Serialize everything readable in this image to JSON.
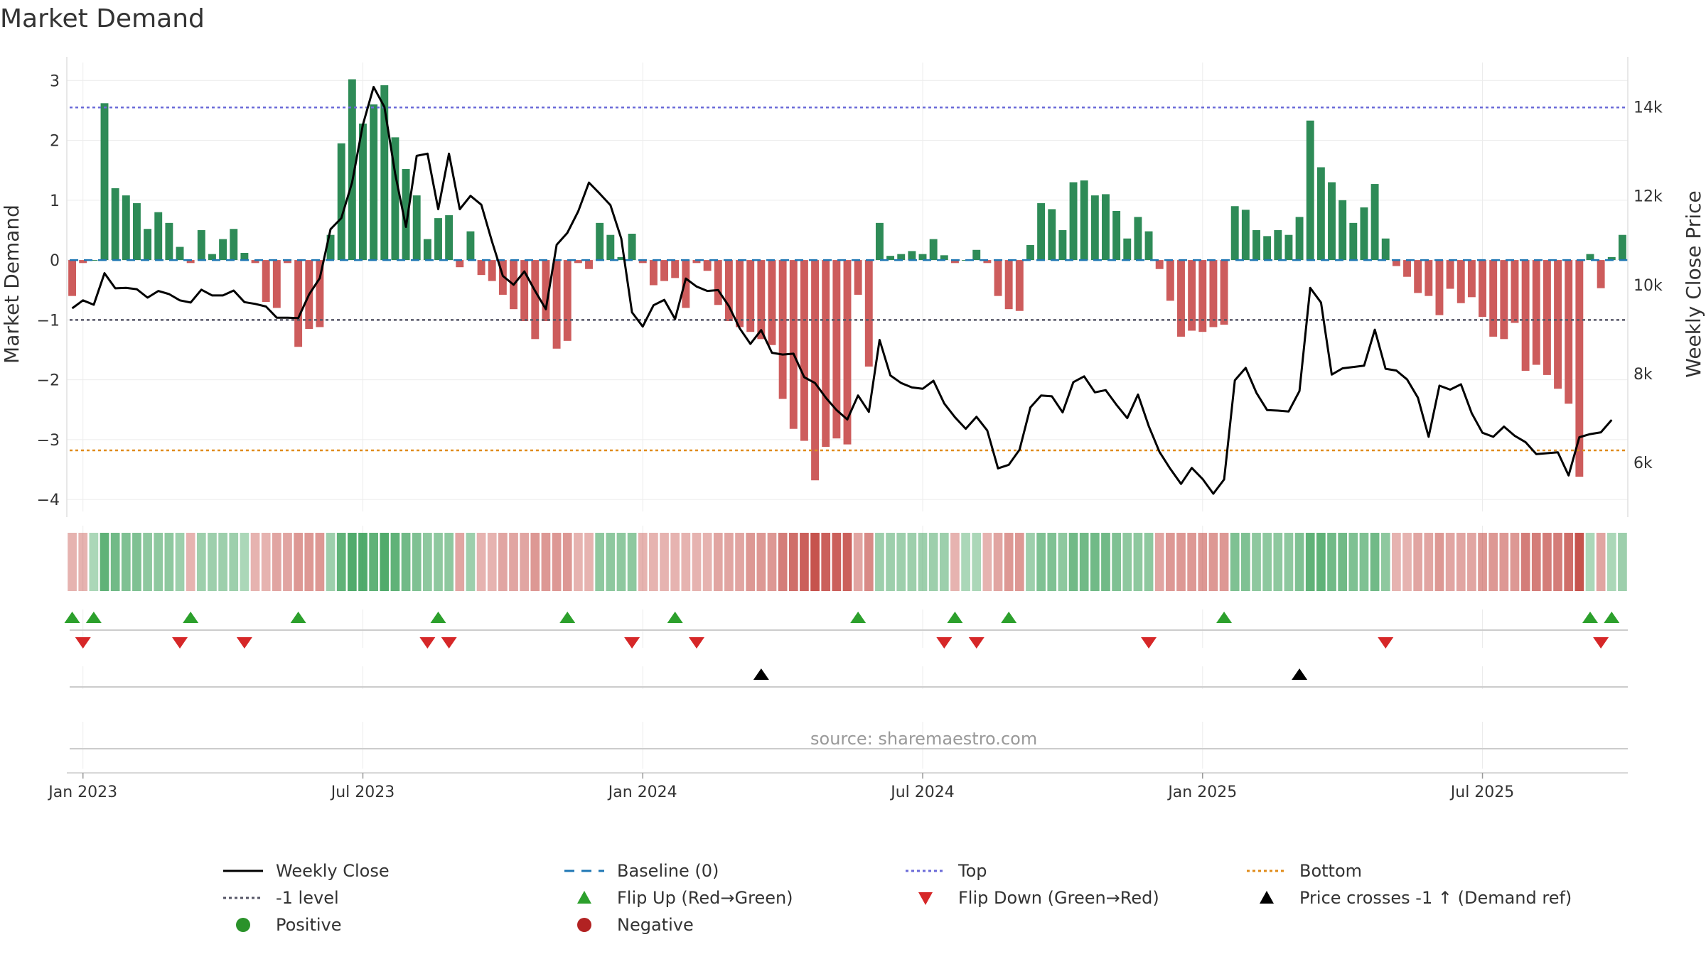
{
  "chart_data": {
    "type": "bar",
    "title": "Market Demand",
    "ylabel_left": "Market Demand",
    "ylabel_right": "Weekly Close Price",
    "ylim_left": [
      -4.2,
      3.3
    ],
    "ylim_right": [
      4900,
      15000
    ],
    "yticks_left": [
      3,
      2,
      1,
      0,
      -1,
      -2,
      -3,
      -4
    ],
    "yticks_left_labels": [
      "3",
      "2",
      "1",
      "0",
      "−1",
      "−2",
      "−3",
      "−4"
    ],
    "yticks_right": [
      14000,
      12000,
      10000,
      8000,
      6000
    ],
    "yticks_right_labels": [
      "14k",
      "12k",
      "10k",
      "8k",
      "6k"
    ],
    "xticks_week_index": [
      1,
      27,
      53,
      79,
      105,
      131
    ],
    "xtick_labels": [
      "Jan 2023",
      "Jul 2023",
      "Jan 2024",
      "Jul 2024",
      "Jan 2025",
      "Jul 2025"
    ],
    "reference_lines": {
      "top": 2.55,
      "minus_one": -1.0,
      "bottom": -3.18
    },
    "source": "source: sharemaestro.com",
    "colors": {
      "positive_bar": "#2e8b57",
      "negative_bar": "#cd5c5c",
      "close_line": "#000000",
      "baseline": "#1f77b4",
      "top": "#6a6ad8",
      "minus_one": "#555566",
      "bottom": "#e08b1a",
      "flip_up": "#2ca02c",
      "flip_down": "#d62728",
      "cross": "#000000",
      "positive_dot": "#2a922a",
      "negative_dot": "#b22222"
    },
    "demand": [
      -0.6,
      -0.05,
      0.0,
      2.62,
      1.2,
      1.08,
      0.95,
      0.52,
      0.8,
      0.62,
      0.22,
      -0.05,
      0.5,
      0.1,
      0.35,
      0.52,
      0.12,
      -0.05,
      -0.7,
      -0.8,
      -0.05,
      -1.45,
      -1.15,
      -1.12,
      0.42,
      1.95,
      3.02,
      2.28,
      2.6,
      2.92,
      2.05,
      1.52,
      1.08,
      0.35,
      0.7,
      0.75,
      -0.12,
      0.48,
      -0.25,
      -0.35,
      -0.58,
      -0.82,
      -1.02,
      -1.32,
      -1.02,
      -1.48,
      -1.35,
      -0.05,
      -0.15,
      0.62,
      0.42,
      0.05,
      0.44,
      -0.05,
      -0.42,
      -0.35,
      -0.3,
      -0.8,
      -0.05,
      -0.18,
      -0.75,
      -1.02,
      -1.12,
      -1.2,
      -1.32,
      -1.42,
      -2.32,
      -2.82,
      -3.02,
      -3.68,
      -3.12,
      -2.98,
      -3.08,
      -0.58,
      -1.78,
      0.62,
      0.07,
      0.1,
      0.15,
      0.1,
      0.35,
      0.08,
      -0.05,
      0.0,
      0.17,
      -0.05,
      -0.6,
      -0.82,
      -0.85,
      0.25,
      0.95,
      0.85,
      0.5,
      1.3,
      1.33,
      1.08,
      1.1,
      0.82,
      0.36,
      0.72,
      0.48,
      -0.15,
      -0.68,
      -1.28,
      -1.18,
      -1.2,
      -1.12,
      -1.08,
      0.9,
      0.84,
      0.5,
      0.4,
      0.5,
      0.42,
      0.72,
      2.33,
      1.55,
      1.3,
      1.0,
      0.62,
      0.88,
      1.27,
      0.36,
      -0.1,
      -0.28,
      -0.55,
      -0.6,
      -0.92,
      -0.48,
      -0.72,
      -0.62,
      -0.95,
      -1.28,
      -1.32,
      -1.05,
      -1.85,
      -1.75,
      -1.92,
      -2.15,
      -2.4,
      -3.62,
      0.1,
      -0.47,
      0.05,
      0.42
    ],
    "close": [
      9470,
      9650,
      9550,
      10260,
      9920,
      9930,
      9900,
      9710,
      9860,
      9790,
      9650,
      9600,
      9890,
      9760,
      9760,
      9870,
      9610,
      9570,
      9510,
      9260,
      9260,
      9250,
      9780,
      10150,
      11250,
      11500,
      12300,
      13600,
      14450,
      14000,
      12500,
      11300,
      12900,
      12950,
      11700,
      12950,
      11700,
      12000,
      11800,
      10970,
      10200,
      10000,
      10300,
      9860,
      9450,
      10900,
      11170,
      11650,
      12300,
      12050,
      11790,
      11040,
      9380,
      9060,
      9540,
      9660,
      9230,
      10140,
      9960,
      9860,
      9880,
      9520,
      9020,
      8670,
      8980,
      8470,
      8430,
      8450,
      7920,
      7790,
      7460,
      7180,
      6970,
      7510,
      7140,
      8760,
      7960,
      7790,
      7690,
      7660,
      7840,
      7330,
      7020,
      6760,
      7030,
      6720,
      5870,
      5950,
      6290,
      7240,
      7510,
      7490,
      7130,
      7810,
      7940,
      7580,
      7630,
      7300,
      7000,
      7530,
      6820,
      6240,
      5860,
      5520,
      5880,
      5630,
      5300,
      5620,
      7850,
      8130,
      7570,
      7180,
      7170,
      7150,
      7610,
      9930,
      9600,
      7980,
      8120,
      8150,
      8180,
      8990,
      8110,
      8070,
      7870,
      7460,
      6580,
      7730,
      7640,
      7760,
      7110,
      6670,
      6580,
      6810,
      6600,
      6460,
      6190,
      6210,
      6230,
      5710,
      6570,
      6640,
      6680,
      6960
    ],
    "shade_levels": [
      0.3,
      0.3,
      0.3,
      0.8,
      0.7,
      0.6,
      0.6,
      0.5,
      0.5,
      0.5,
      0.4,
      0.3,
      0.4,
      0.4,
      0.4,
      0.4,
      0.3,
      0.3,
      0.3,
      0.4,
      0.4,
      0.5,
      0.5,
      0.5,
      0.4,
      0.8,
      0.9,
      0.9,
      0.8,
      0.9,
      0.8,
      0.7,
      0.6,
      0.5,
      0.5,
      0.5,
      0.4,
      0.4,
      0.3,
      0.3,
      0.4,
      0.4,
      0.4,
      0.5,
      0.5,
      0.5,
      0.5,
      0.3,
      0.3,
      0.5,
      0.5,
      0.5,
      0.5,
      0.3,
      0.3,
      0.3,
      0.3,
      0.3,
      0.3,
      0.3,
      0.4,
      0.4,
      0.4,
      0.5,
      0.5,
      0.5,
      0.7,
      0.8,
      0.9,
      1.0,
      0.9,
      0.9,
      0.9,
      0.4,
      0.6,
      0.4,
      0.4,
      0.4,
      0.4,
      0.4,
      0.4,
      0.4,
      0.3,
      0.3,
      0.3,
      0.3,
      0.4,
      0.5,
      0.5,
      0.4,
      0.6,
      0.6,
      0.5,
      0.7,
      0.7,
      0.7,
      0.7,
      0.6,
      0.5,
      0.5,
      0.5,
      0.4,
      0.5,
      0.5,
      0.5,
      0.5,
      0.5,
      0.5,
      0.6,
      0.6,
      0.5,
      0.5,
      0.5,
      0.5,
      0.6,
      0.8,
      0.8,
      0.7,
      0.7,
      0.6,
      0.6,
      0.7,
      0.5,
      0.3,
      0.3,
      0.4,
      0.4,
      0.5,
      0.4,
      0.4,
      0.4,
      0.5,
      0.5,
      0.5,
      0.5,
      0.7,
      0.7,
      0.7,
      0.7,
      0.8,
      1.0,
      0.3,
      0.4,
      0.3,
      0.4
    ],
    "flip_up_weeks": [
      0,
      2,
      11,
      21,
      34,
      46,
      56,
      73,
      82,
      87,
      107,
      141,
      143
    ],
    "flip_down_weeks": [
      1,
      10,
      16,
      33,
      35,
      52,
      58,
      81,
      84,
      100,
      122,
      142
    ],
    "price_cross_weeks": [
      64,
      114
    ],
    "legend": [
      {
        "label": "Weekly Close",
        "symbol": "solid-line",
        "color": "#000000"
      },
      {
        "label": "Baseline (0)",
        "symbol": "dashed-line",
        "color": "#1f77b4"
      },
      {
        "label": "Top",
        "symbol": "dotted-line",
        "color": "#6a6ad8"
      },
      {
        "label": "Bottom",
        "symbol": "dotted-line",
        "color": "#e08b1a"
      },
      {
        "label": "-1 level",
        "symbol": "dotted-line",
        "color": "#555566"
      },
      {
        "label": "Flip Up (Red→Green)",
        "symbol": "triangle-up",
        "color": "#2ca02c"
      },
      {
        "label": "Flip Down (Green→Red)",
        "symbol": "triangle-down",
        "color": "#d62728"
      },
      {
        "label": "Price crosses -1 ↑ (Demand ref)",
        "symbol": "triangle-up",
        "color": "#000000"
      },
      {
        "label": "Positive",
        "symbol": "dot",
        "color": "#2a922a"
      },
      {
        "label": "Negative",
        "symbol": "dot",
        "color": "#b22222"
      }
    ]
  }
}
